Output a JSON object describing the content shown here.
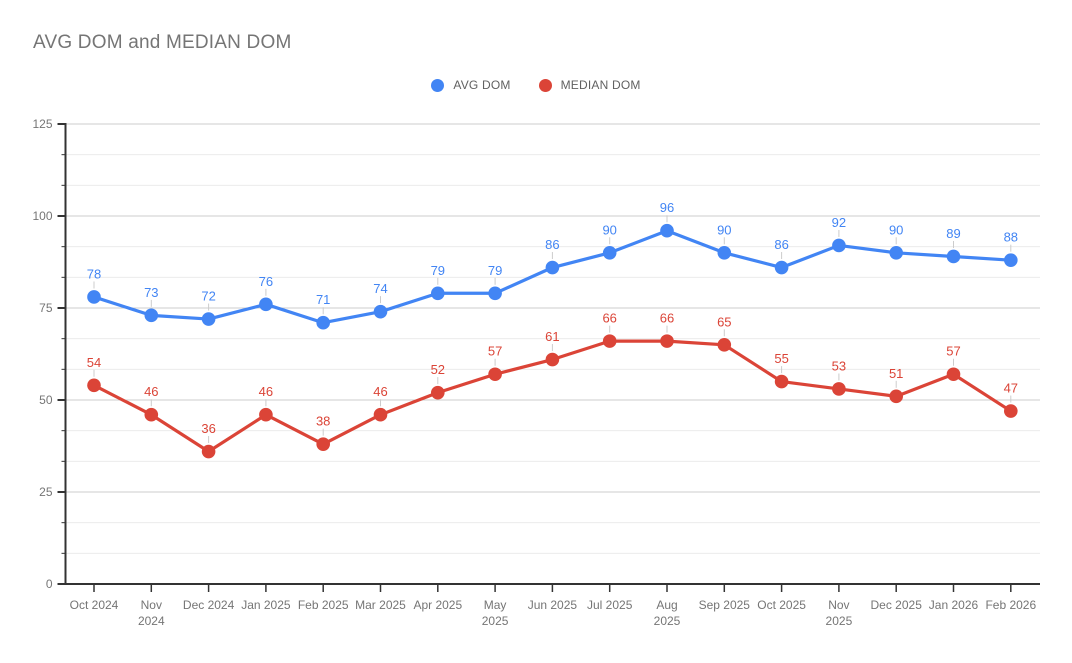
{
  "title": "AVG DOM and MEDIAN DOM",
  "legend": {
    "position": "top-center",
    "items": [
      {
        "label": "AVG DOM",
        "color": "#4285f4"
      },
      {
        "label": "MEDIAN DOM",
        "color": "#db4437"
      }
    ]
  },
  "chart_data": {
    "type": "line",
    "title": "AVG DOM and MEDIAN DOM",
    "categories": [
      "Oct 2024",
      "Nov 2024",
      "Dec 2024",
      "Jan 2025",
      "Feb 2025",
      "Mar 2025",
      "Apr 2025",
      "May 2025",
      "Jun 2025",
      "Jul 2025",
      "Aug 2025",
      "Sep 2025",
      "Oct 2025",
      "Nov 2025",
      "Dec 2025",
      "Jan 2026",
      "Feb 2026"
    ],
    "series": [
      {
        "name": "AVG DOM",
        "color": "#4285f4",
        "values": [
          78,
          73,
          72,
          76,
          71,
          74,
          79,
          79,
          86,
          90,
          96,
          90,
          86,
          92,
          90,
          89,
          88
        ]
      },
      {
        "name": "MEDIAN DOM",
        "color": "#db4437",
        "values": [
          54,
          46,
          36,
          46,
          38,
          46,
          52,
          57,
          61,
          66,
          66,
          65,
          55,
          53,
          51,
          57,
          47
        ]
      }
    ],
    "xlabel": "",
    "ylabel": "",
    "ylim": [
      0,
      125
    ],
    "y_major_ticks": [
      0,
      25,
      50,
      75,
      100,
      125
    ],
    "minor_gridlines_between_majors": 2,
    "grid": true,
    "point_labels": true,
    "legend_position": "top",
    "two_line_x_labels": [
      "Nov 2024",
      "May 2025",
      "Aug 2025",
      "Nov 2025"
    ]
  },
  "colors": {
    "series_avg_dom": "#4285f4",
    "series_median_dom": "#db4437",
    "grid_major": "#cccccc",
    "grid_minor": "#ebebeb",
    "axis_line": "#333333",
    "axis_text": "#757575",
    "title_text": "#757575",
    "annotation_stem": "#cccccc",
    "background": "#ffffff"
  }
}
